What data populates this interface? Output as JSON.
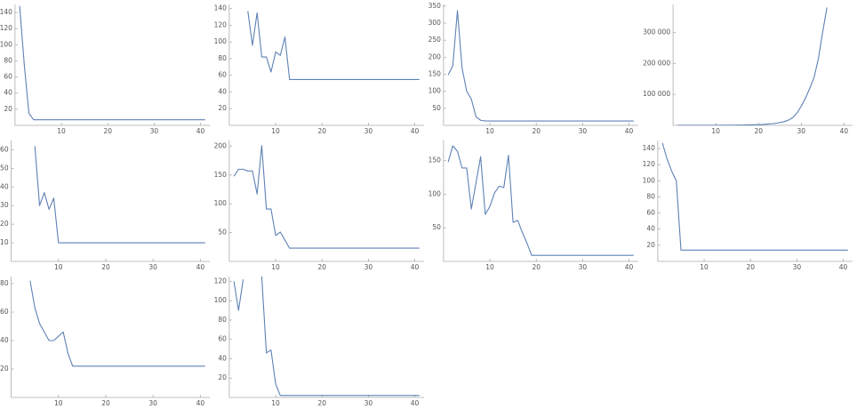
{
  "chart_data": [
    {
      "type": "line",
      "x": [
        1,
        2,
        3,
        4,
        5,
        6,
        7,
        8,
        9,
        10,
        11,
        12,
        13,
        14,
        15,
        16,
        17,
        18,
        19,
        20,
        21,
        22,
        23,
        24,
        25,
        26,
        27,
        28,
        29,
        30,
        31,
        32,
        33,
        34,
        35,
        36,
        37,
        38,
        39,
        40,
        41
      ],
      "series": [
        {
          "color": "#5e81b5",
          "values": [
            148,
            75,
            15,
            7,
            7,
            7,
            7,
            7,
            7,
            7,
            7,
            7,
            7,
            7,
            7,
            7,
            7,
            7,
            7,
            7,
            7,
            7,
            7,
            7,
            7,
            7,
            7,
            7,
            7,
            7,
            7,
            7,
            7,
            7,
            7,
            7,
            7,
            7,
            7,
            7,
            7
          ]
        }
      ],
      "xlim": [
        0,
        42
      ],
      "ylim": [
        0,
        150
      ],
      "xticks": [
        10,
        20,
        30,
        40
      ],
      "yticks": [
        20,
        40,
        60,
        80,
        100,
        120,
        140
      ]
    },
    {
      "type": "line",
      "x": [
        1,
        2,
        3,
        4,
        5,
        6,
        7,
        8,
        9,
        10,
        11,
        12,
        13,
        14,
        15,
        16,
        17,
        18,
        19,
        20,
        21,
        22,
        23,
        24,
        25,
        26,
        27,
        28,
        29,
        30,
        31,
        32,
        33,
        34,
        35,
        36,
        37,
        38,
        39,
        40,
        41
      ],
      "series": [
        {
          "color": "#5e81b5",
          "values": [
            null,
            null,
            null,
            137,
            96,
            135,
            82,
            82,
            64,
            88,
            84,
            106,
            55,
            55,
            55,
            55,
            55,
            55,
            55,
            55,
            55,
            55,
            55,
            55,
            55,
            55,
            55,
            55,
            55,
            55,
            55,
            55,
            55,
            55,
            55,
            55,
            55,
            55,
            55,
            55,
            55
          ]
        }
      ],
      "xlim": [
        0,
        42
      ],
      "ylim": [
        0,
        145
      ],
      "xticks": [
        10,
        20,
        30,
        40
      ],
      "yticks": [
        20,
        40,
        60,
        80,
        100,
        120,
        140
      ]
    },
    {
      "type": "line",
      "x": [
        1,
        2,
        3,
        4,
        5,
        6,
        7,
        8,
        9,
        10,
        11,
        12,
        13,
        14,
        15,
        16,
        17,
        18,
        19,
        20,
        21,
        22,
        23,
        24,
        25,
        26,
        27,
        28,
        29,
        30,
        31,
        32,
        33,
        34,
        35,
        36,
        37,
        38,
        39,
        40,
        41
      ],
      "series": [
        {
          "color": "#5e81b5",
          "values": [
            148,
            175,
            337,
            168,
            100,
            77,
            25,
            15,
            13,
            13,
            13,
            13,
            13,
            13,
            13,
            13,
            13,
            13,
            13,
            13,
            13,
            13,
            13,
            13,
            13,
            13,
            13,
            13,
            13,
            13,
            13,
            13,
            13,
            13,
            13,
            13,
            13,
            13,
            13,
            13,
            13
          ]
        }
      ],
      "xlim": [
        0,
        42
      ],
      "ylim": [
        0,
        355
      ],
      "xticks": [
        10,
        20,
        30,
        40
      ],
      "yticks": [
        50,
        100,
        150,
        200,
        250,
        300,
        350
      ]
    },
    {
      "type": "line",
      "x": [
        1,
        2,
        3,
        4,
        5,
        6,
        7,
        8,
        9,
        10,
        11,
        12,
        13,
        14,
        15,
        16,
        17,
        18,
        19,
        20,
        21,
        22,
        23,
        24,
        25,
        26,
        27,
        28,
        29,
        30,
        31,
        32,
        33,
        34,
        35,
        36
      ],
      "series": [
        {
          "color": "#5e81b5",
          "values": [
            50,
            60,
            80,
            100,
            120,
            150,
            180,
            220,
            270,
            330,
            400,
            500,
            600,
            750,
            900,
            1100,
            1350,
            1650,
            2000,
            2500,
            3000,
            4000,
            5000,
            6500,
            9000,
            12000,
            17000,
            25000,
            40000,
            62000,
            88000,
            120000,
            155000,
            215000,
            300000,
            380000
          ]
        }
      ],
      "xlim": [
        0,
        42
      ],
      "ylim": [
        0,
        390000
      ],
      "xticks": [
        10,
        20,
        30,
        40
      ],
      "yticks": [
        {
          "value": 100000,
          "label": "100 000"
        },
        {
          "value": 200000,
          "label": "200 000"
        },
        {
          "value": 300000,
          "label": "300 000"
        }
      ]
    },
    {
      "type": "line",
      "x": [
        1,
        2,
        3,
        4,
        5,
        6,
        7,
        8,
        9,
        10,
        11,
        12,
        13,
        14,
        15,
        16,
        17,
        18,
        19,
        20,
        21,
        22,
        23,
        24,
        25,
        26,
        27,
        28,
        29,
        30,
        31,
        32,
        33,
        34,
        35,
        36,
        37,
        38,
        39,
        40,
        41
      ],
      "series": [
        {
          "color": "#5e81b5",
          "values": [
            null,
            null,
            null,
            null,
            62,
            30,
            37,
            28,
            34,
            10,
            10,
            10,
            10,
            10,
            10,
            10,
            10,
            10,
            10,
            10,
            10,
            10,
            10,
            10,
            10,
            10,
            10,
            10,
            10,
            10,
            10,
            10,
            10,
            10,
            10,
            10,
            10,
            10,
            10,
            10,
            10
          ]
        }
      ],
      "xlim": [
        0,
        42
      ],
      "ylim": [
        0,
        65
      ],
      "xticks": [
        10,
        20,
        30,
        40
      ],
      "yticks": [
        10,
        20,
        30,
        40,
        50,
        60
      ]
    },
    {
      "type": "line",
      "x": [
        1,
        2,
        3,
        4,
        5,
        6,
        7,
        8,
        9,
        10,
        11,
        12,
        13,
        14,
        15,
        16,
        17,
        18,
        19,
        20,
        21,
        22,
        23,
        24,
        25,
        26,
        27,
        28,
        29,
        30,
        31,
        32,
        33,
        34,
        35,
        36,
        37,
        38,
        39,
        40,
        41
      ],
      "series": [
        {
          "color": "#5e81b5",
          "values": [
            148,
            160,
            160,
            157,
            157,
            117,
            201,
            91,
            91,
            45,
            51,
            37,
            23,
            23,
            23,
            23,
            23,
            23,
            23,
            23,
            23,
            23,
            23,
            23,
            23,
            23,
            23,
            23,
            23,
            23,
            23,
            23,
            23,
            23,
            23,
            23,
            23,
            23,
            23,
            23,
            23
          ]
        }
      ],
      "xlim": [
        0,
        42
      ],
      "ylim": [
        0,
        210
      ],
      "xticks": [
        10,
        20,
        30,
        40
      ],
      "yticks": [
        50,
        100,
        150,
        200
      ]
    },
    {
      "type": "line",
      "x": [
        1,
        2,
        3,
        4,
        5,
        6,
        7,
        8,
        9,
        10,
        11,
        12,
        13,
        14,
        15,
        16,
        17,
        18,
        19,
        20,
        21,
        22,
        23,
        24,
        25,
        26,
        27,
        28,
        29,
        30,
        31,
        32,
        33,
        34,
        35,
        36,
        37,
        38,
        39,
        40,
        41
      ],
      "series": [
        {
          "color": "#5e81b5",
          "values": [
            148,
            172,
            164,
            139,
            139,
            78,
            117,
            156,
            70,
            82,
            102,
            112,
            110,
            158,
            58,
            61,
            43,
            27,
            9,
            9,
            9,
            9,
            9,
            9,
            9,
            9,
            9,
            9,
            9,
            9,
            9,
            9,
            9,
            9,
            9,
            9,
            9,
            9,
            9,
            9,
            9
          ]
        }
      ],
      "xlim": [
        0,
        42
      ],
      "ylim": [
        0,
        180
      ],
      "xticks": [
        10,
        20,
        30,
        40
      ],
      "yticks": [
        50,
        100,
        150
      ]
    },
    {
      "type": "line",
      "x": [
        1,
        2,
        3,
        4,
        5,
        6,
        7,
        8,
        9,
        10,
        11,
        12,
        13,
        14,
        15,
        16,
        17,
        18,
        19,
        20,
        21,
        22,
        23,
        24,
        25,
        26,
        27,
        28,
        29,
        30,
        31,
        32,
        33,
        34,
        35,
        36,
        37,
        38,
        39,
        40,
        41
      ],
      "series": [
        {
          "color": "#5e81b5",
          "values": [
            147,
            127,
            112,
            100,
            14,
            14,
            14,
            14,
            14,
            14,
            14,
            14,
            14,
            14,
            14,
            14,
            14,
            14,
            14,
            14,
            14,
            14,
            14,
            14,
            14,
            14,
            14,
            14,
            14,
            14,
            14,
            14,
            14,
            14,
            14,
            14,
            14,
            14,
            14,
            14,
            14
          ]
        }
      ],
      "xlim": [
        0,
        42
      ],
      "ylim": [
        0,
        150
      ],
      "xticks": [
        10,
        20,
        30,
        40
      ],
      "yticks": [
        20,
        40,
        60,
        80,
        100,
        120,
        140
      ]
    },
    {
      "type": "line",
      "x": [
        1,
        2,
        3,
        4,
        5,
        6,
        7,
        8,
        9,
        10,
        11,
        12,
        13,
        14,
        15,
        16,
        17,
        18,
        19,
        20,
        21,
        22,
        23,
        24,
        25,
        26,
        27,
        28,
        29,
        30,
        31,
        32,
        33,
        34,
        35,
        36,
        37,
        38,
        39,
        40,
        41
      ],
      "series": [
        {
          "color": "#5e81b5",
          "values": [
            null,
            null,
            null,
            82,
            63,
            52,
            46,
            40,
            40,
            43,
            46,
            31,
            22,
            22,
            22,
            22,
            22,
            22,
            22,
            22,
            22,
            22,
            22,
            22,
            22,
            22,
            22,
            22,
            22,
            22,
            22,
            22,
            22,
            22,
            22,
            22,
            22,
            22,
            22,
            22,
            22
          ]
        }
      ],
      "xlim": [
        0,
        42
      ],
      "ylim": [
        0,
        85
      ],
      "xticks": [
        10,
        20,
        30,
        40
      ],
      "yticks": [
        20,
        40,
        60,
        80
      ]
    },
    {
      "type": "line",
      "x": [
        1,
        2,
        3,
        4,
        5,
        6,
        7,
        8,
        9,
        10,
        11,
        12,
        13,
        14,
        15,
        16,
        17,
        18,
        19,
        20,
        21,
        22,
        23,
        24,
        25,
        26,
        27,
        28,
        29,
        30,
        31,
        32,
        33,
        34,
        35,
        36,
        37,
        38,
        39,
        40,
        41
      ],
      "series": [
        {
          "color": "#5e81b5",
          "values": [
            120,
            90,
            122,
            null,
            null,
            null,
            125,
            46,
            49,
            14,
            2,
            2,
            2,
            2,
            2,
            2,
            2,
            2,
            2,
            2,
            2,
            2,
            2,
            2,
            2,
            2,
            2,
            2,
            2,
            2,
            2,
            2,
            2,
            2,
            2,
            2,
            2,
            2,
            2,
            2,
            2
          ]
        }
      ],
      "xlim": [
        0,
        42
      ],
      "ylim": [
        0,
        125
      ],
      "xticks": [
        10,
        20,
        30,
        40
      ],
      "yticks": [
        20,
        40,
        60,
        80,
        100,
        120
      ]
    }
  ]
}
